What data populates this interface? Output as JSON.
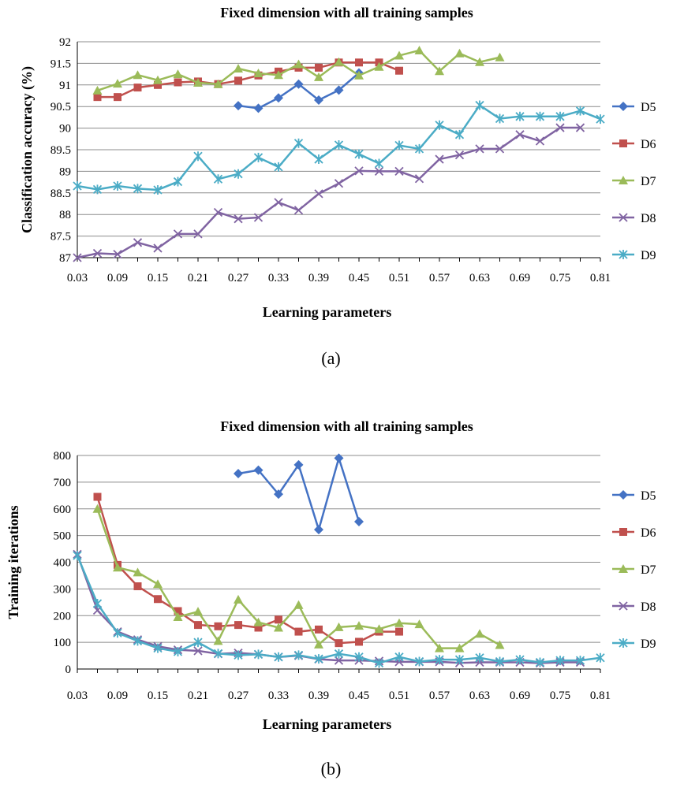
{
  "colors": {
    "D5": "#4472C4",
    "D6": "#C0504D",
    "D7": "#9BBB59",
    "D8": "#8064A2",
    "D9": "#4BACC6",
    "grid": "#8c8c8c",
    "axis": "#000000"
  },
  "chart_data": [
    {
      "type": "line",
      "caption": "(a)",
      "title": "Fixed dimension with all training samples",
      "xlabel": "Learning parameters",
      "ylabel": "Classification accuracy (%)",
      "ylim": [
        87,
        92
      ],
      "yticks": [
        "87",
        "87.5",
        "88",
        "88.5",
        "89",
        "89.5",
        "90",
        "90.5",
        "91",
        "91.5",
        "92"
      ],
      "xlim": [
        0.03,
        0.81
      ],
      "xticks": [
        "0.03",
        "0.09",
        "0.15",
        "0.21",
        "0.27",
        "0.33",
        "0.39",
        "0.45",
        "0.51",
        "0.57",
        "0.63",
        "0.69",
        "0.75",
        "0.81"
      ],
      "x": [
        0.03,
        0.06,
        0.09,
        0.12,
        0.15,
        0.18,
        0.21,
        0.24,
        0.27,
        0.3,
        0.33,
        0.36,
        0.39,
        0.42,
        0.45,
        0.48,
        0.51,
        0.54,
        0.57,
        0.6,
        0.63,
        0.66,
        0.69,
        0.72,
        0.75,
        0.78,
        0.81
      ],
      "legend": [
        "D5",
        "D6",
        "D7",
        "D8",
        "D9"
      ],
      "series": [
        {
          "name": "D5",
          "marker": "diamond",
          "values": [
            null,
            null,
            null,
            null,
            null,
            null,
            null,
            null,
            90.52,
            90.46,
            90.7,
            91.02,
            90.65,
            90.88,
            91.28,
            null,
            null,
            null,
            null,
            null,
            null,
            null,
            null,
            null,
            null,
            null,
            null
          ]
        },
        {
          "name": "D6",
          "marker": "square",
          "values": [
            null,
            90.72,
            90.72,
            90.94,
            91.0,
            91.06,
            91.08,
            91.02,
            91.1,
            91.22,
            91.31,
            91.4,
            91.4,
            91.52,
            91.52,
            91.52,
            91.33,
            null,
            null,
            null,
            null,
            null,
            null,
            null,
            null,
            null,
            null
          ]
        },
        {
          "name": "D7",
          "marker": "triangle",
          "values": [
            null,
            90.87,
            91.03,
            91.23,
            91.11,
            91.25,
            91.05,
            91.02,
            91.38,
            91.27,
            91.23,
            91.48,
            91.18,
            91.53,
            91.22,
            91.42,
            91.68,
            91.8,
            91.32,
            91.73,
            91.53,
            91.64,
            null,
            null,
            null,
            null,
            null
          ]
        },
        {
          "name": "D8",
          "marker": "x",
          "values": [
            87.0,
            87.1,
            87.08,
            87.35,
            87.22,
            87.55,
            87.55,
            88.05,
            87.9,
            87.93,
            88.28,
            88.1,
            88.48,
            88.72,
            89.01,
            89.0,
            89.0,
            88.83,
            89.28,
            89.38,
            89.52,
            89.52,
            89.85,
            89.7,
            90.01,
            90.01,
            null
          ]
        },
        {
          "name": "D9",
          "marker": "star",
          "values": [
            88.66,
            88.58,
            88.66,
            88.6,
            88.57,
            88.76,
            89.35,
            88.82,
            88.94,
            89.32,
            89.1,
            89.65,
            89.28,
            89.61,
            89.4,
            89.18,
            89.6,
            89.52,
            90.07,
            89.85,
            90.53,
            90.22,
            90.27,
            90.27,
            90.27,
            90.4,
            90.21
          ]
        }
      ]
    },
    {
      "type": "line",
      "caption": "(b)",
      "title": "Fixed dimension with all training samples",
      "xlabel": "Learning parameters",
      "ylabel": "Training iterations",
      "ylim": [
        0,
        800
      ],
      "yticks": [
        "0",
        "100",
        "200",
        "300",
        "400",
        "500",
        "600",
        "700",
        "800"
      ],
      "xlim": [
        0.03,
        0.81
      ],
      "xticks": [
        "0.03",
        "0.09",
        "0.15",
        "0.21",
        "0.27",
        "0.33",
        "0.39",
        "0.45",
        "0.51",
        "0.57",
        "0.63",
        "0.69",
        "0.75",
        "0.81"
      ],
      "x": [
        0.03,
        0.06,
        0.09,
        0.12,
        0.15,
        0.18,
        0.21,
        0.24,
        0.27,
        0.3,
        0.33,
        0.36,
        0.39,
        0.42,
        0.45,
        0.48,
        0.51,
        0.54,
        0.57,
        0.6,
        0.63,
        0.66,
        0.69,
        0.72,
        0.75,
        0.78,
        0.81
      ],
      "legend": [
        "D5",
        "D6",
        "D7",
        "D8",
        "D9"
      ],
      "series": [
        {
          "name": "D5",
          "marker": "diamond",
          "values": [
            null,
            null,
            null,
            null,
            null,
            null,
            null,
            null,
            732,
            745,
            655,
            765,
            522,
            790,
            552,
            null,
            null,
            null,
            null,
            null,
            null,
            null,
            null,
            null,
            null,
            null,
            null
          ]
        },
        {
          "name": "D6",
          "marker": "square",
          "values": [
            null,
            645,
            390,
            310,
            262,
            217,
            165,
            160,
            165,
            155,
            185,
            140,
            148,
            97,
            102,
            140,
            140,
            null,
            null,
            null,
            null,
            null,
            null,
            null,
            null,
            null,
            null
          ]
        },
        {
          "name": "D7",
          "marker": "triangle",
          "values": [
            null,
            600,
            380,
            362,
            318,
            195,
            215,
            105,
            260,
            175,
            155,
            240,
            92,
            157,
            162,
            150,
            172,
            168,
            78,
            78,
            132,
            90,
            null,
            null,
            null,
            null,
            null
          ]
        },
        {
          "name": "D8",
          "marker": "x",
          "values": [
            430,
            220,
            140,
            110,
            85,
            72,
            68,
            57,
            60,
            55,
            45,
            50,
            37,
            32,
            32,
            30,
            27,
            27,
            27,
            23,
            25,
            25,
            25,
            22,
            25,
            25,
            null
          ]
        },
        {
          "name": "D9",
          "marker": "star",
          "values": [
            425,
            245,
            135,
            105,
            78,
            65,
            100,
            58,
            52,
            55,
            45,
            52,
            38,
            57,
            45,
            22,
            45,
            28,
            35,
            35,
            42,
            28,
            35,
            25,
            32,
            32,
            42
          ]
        }
      ]
    }
  ]
}
